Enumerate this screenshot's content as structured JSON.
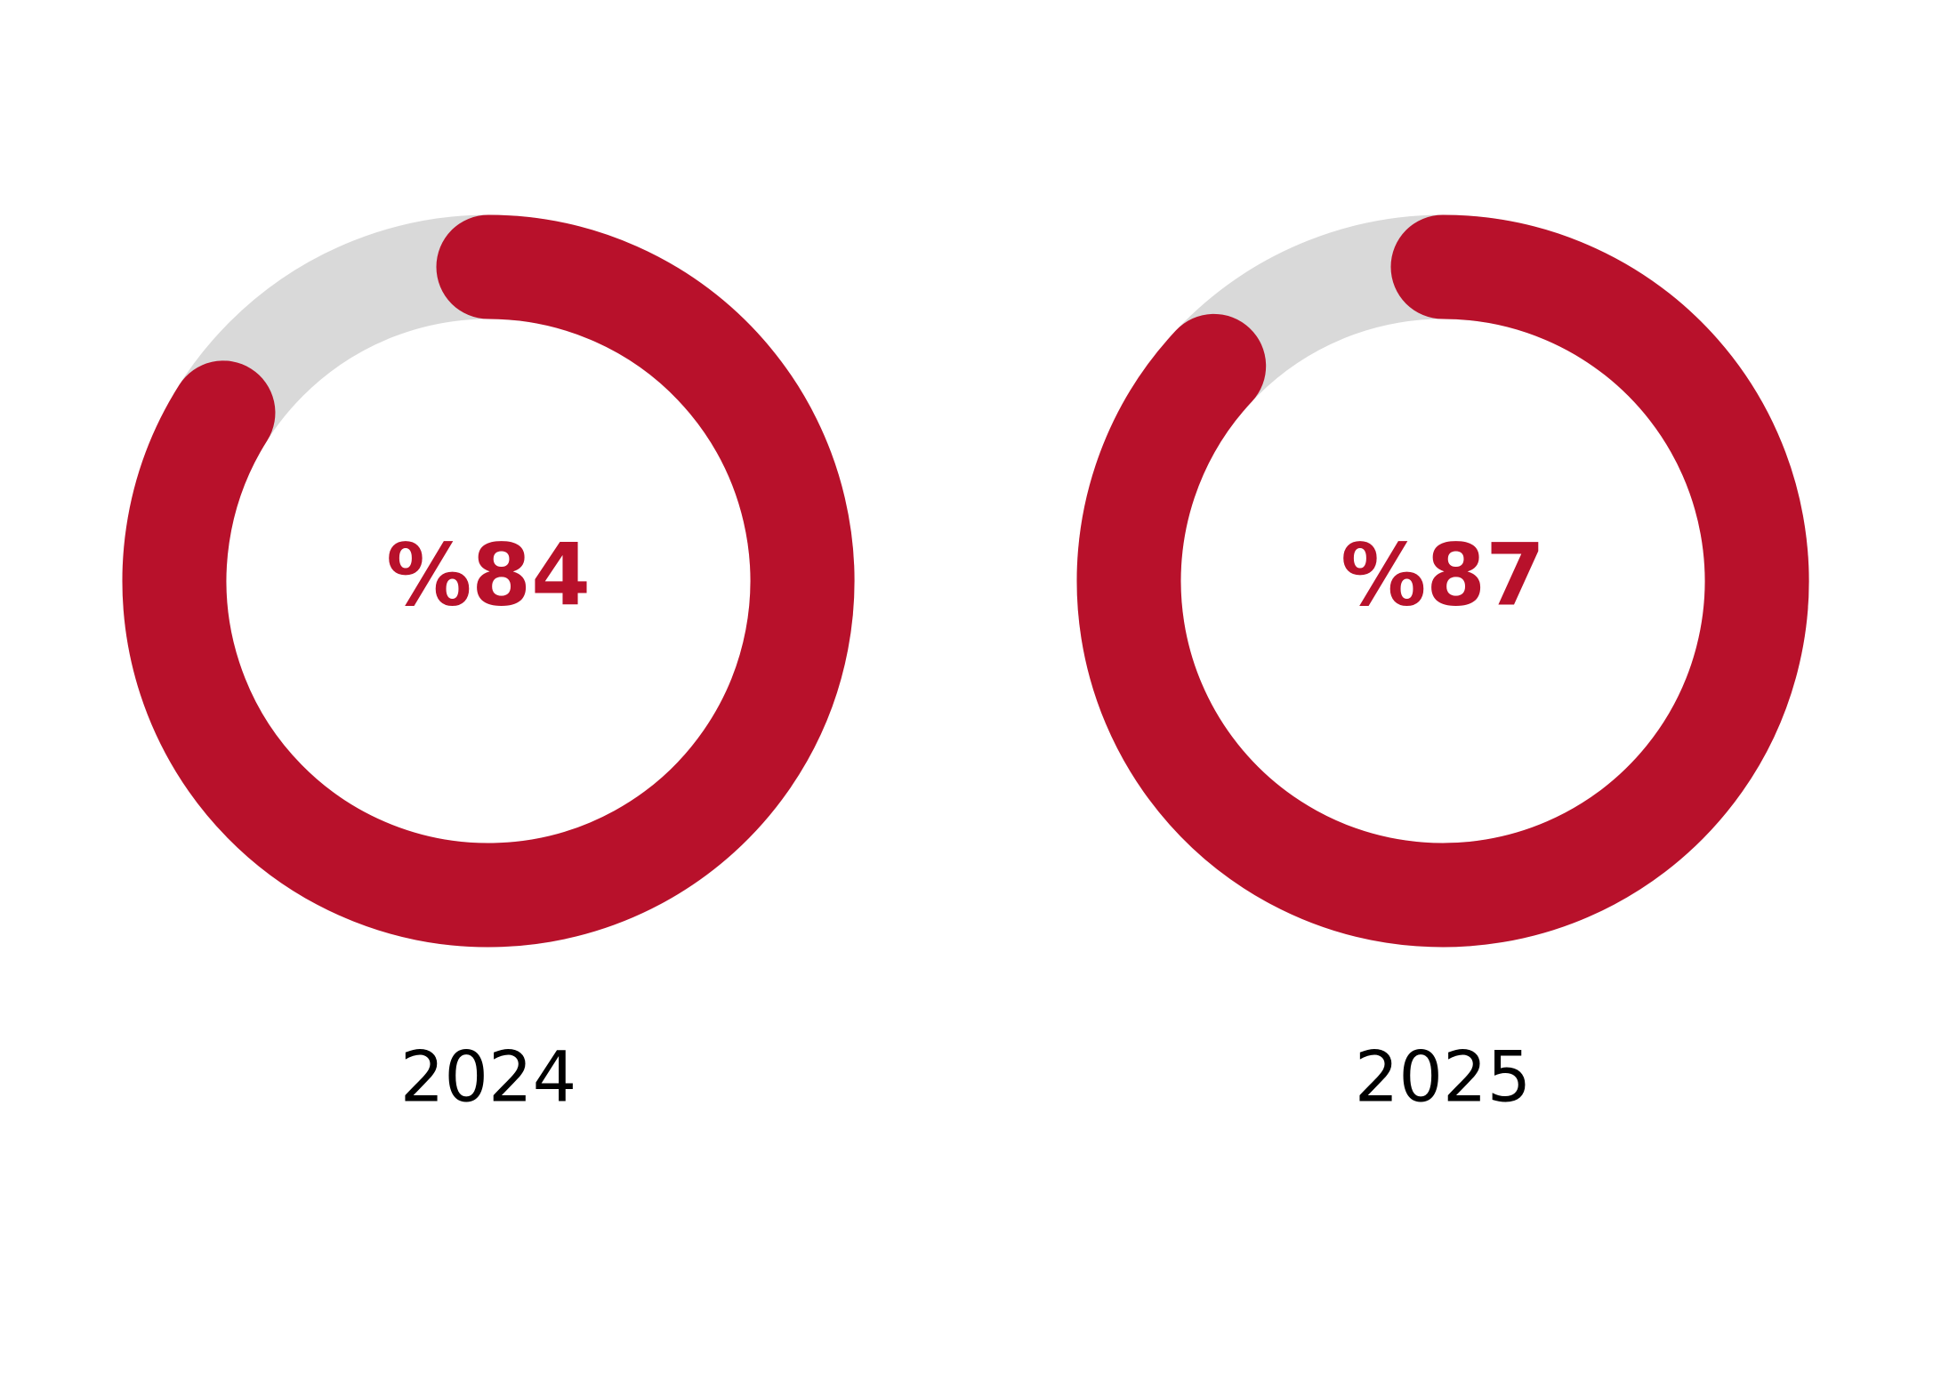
{
  "chart_data": [
    {
      "type": "donut",
      "title": "2024",
      "values": [
        84
      ],
      "value_labels": [
        "%84"
      ],
      "color": "#b8112b",
      "track_color": "#d9d9d9"
    },
    {
      "type": "donut",
      "title": "2025",
      "values": [
        87
      ],
      "value_labels": [
        "%87"
      ],
      "color": "#b8112b",
      "track_color": "#d9d9d9"
    }
  ]
}
